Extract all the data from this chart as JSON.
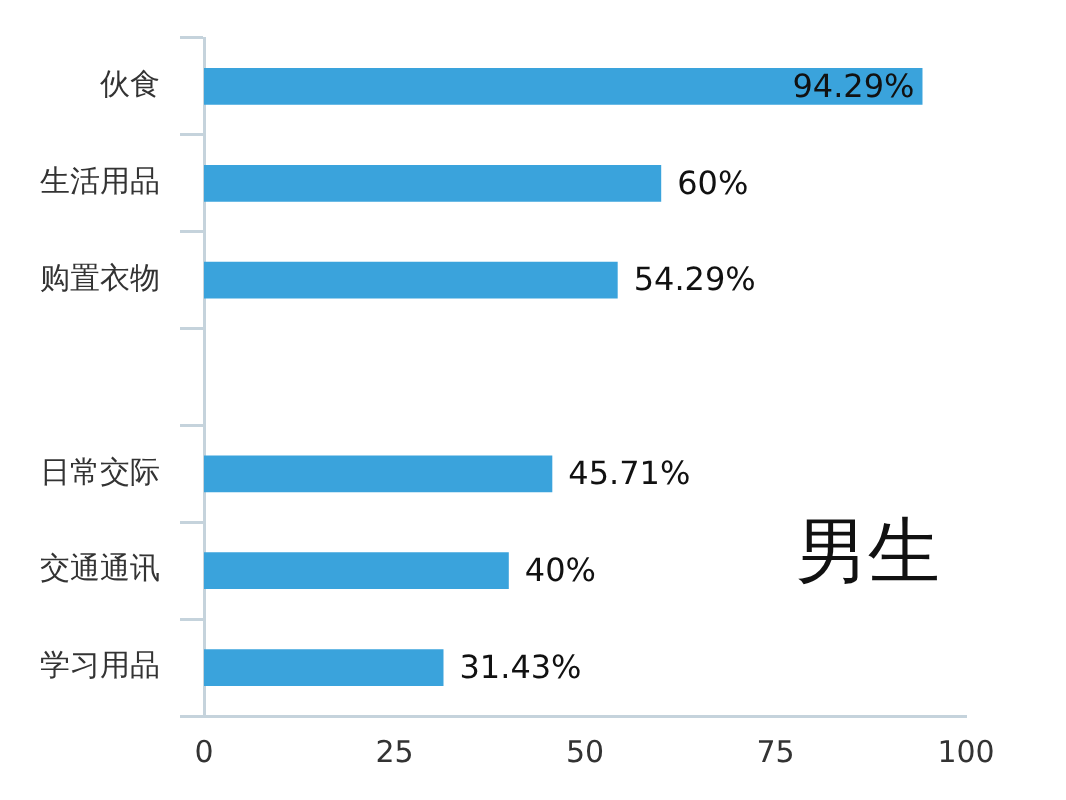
{
  "chart_data": {
    "type": "bar",
    "orientation": "horizontal",
    "categories": [
      "伙食",
      "生活用品",
      "购置衣物",
      null,
      "日常交际",
      "交通通讯",
      "学习用品"
    ],
    "series": [
      {
        "color": "#3aa3dc",
        "values": [
          94.29,
          60,
          54.29,
          null,
          45.71,
          40,
          31.43
        ]
      }
    ],
    "value_labels": [
      "94.29%",
      "60%",
      "54.29%",
      null,
      "45.71%",
      "40%",
      "31.43%"
    ],
    "xlim": [
      0,
      100
    ],
    "xticks": [
      0,
      25,
      50,
      75,
      100
    ],
    "grid": false,
    "legend": false,
    "annotations": [
      {
        "text": "男生"
      }
    ]
  }
}
